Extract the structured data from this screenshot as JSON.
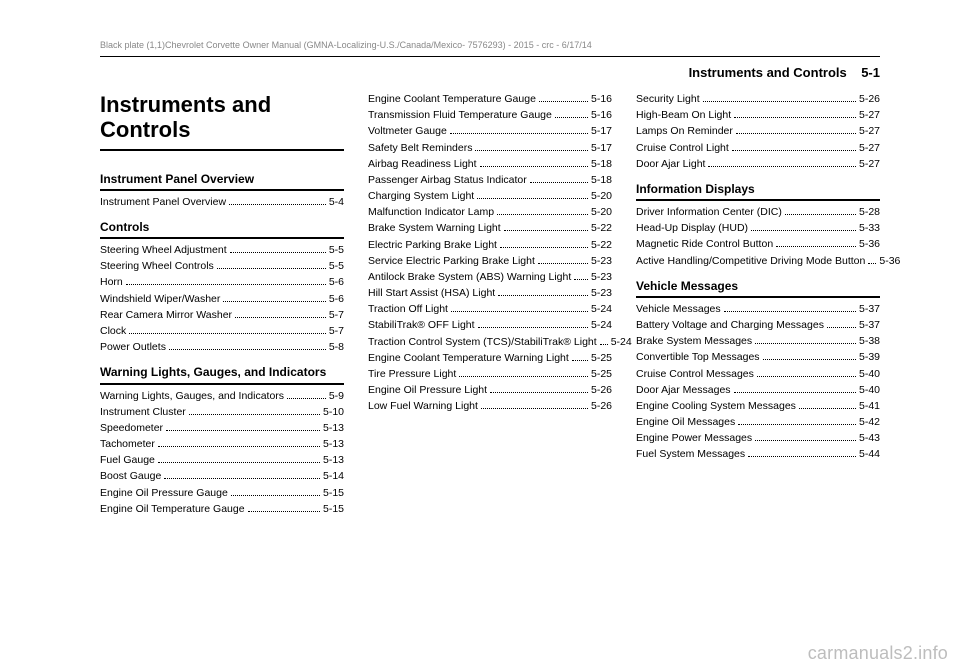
{
  "running_title": "Black plate (1,1)Chevrolet Corvette Owner Manual (GMNA-Localizing-U.S./Canada/Mexico-\n7576293) - 2015 - crc - 6/17/14",
  "page_header_label": "Instruments and Controls",
  "page_header_num": "5-1",
  "chapter_title": "Instruments and Controls",
  "watermark": "carmanuals2.info",
  "col1": {
    "sections": [
      {
        "heading": "Instrument Panel Overview",
        "items": [
          {
            "label": "Instrument Panel Overview",
            "page": "5-4"
          }
        ]
      },
      {
        "heading": "Controls",
        "items": [
          {
            "label": "Steering Wheel Adjustment",
            "page": "5-5"
          },
          {
            "label": "Steering Wheel Controls",
            "page": "5-5"
          },
          {
            "label": "Horn",
            "page": "5-6"
          },
          {
            "label": "Windshield Wiper/Washer",
            "page": "5-6"
          },
          {
            "label": "Rear Camera Mirror Washer",
            "page": "5-7"
          },
          {
            "label": "Clock",
            "page": "5-7"
          },
          {
            "label": "Power Outlets",
            "page": "5-8"
          }
        ]
      },
      {
        "heading": "Warning Lights, Gauges, and Indicators",
        "items": [
          {
            "label": "Warning Lights, Gauges, and Indicators",
            "page": "5-9"
          },
          {
            "label": "Instrument Cluster",
            "page": "5-10"
          },
          {
            "label": "Speedometer",
            "page": "5-13"
          },
          {
            "label": "Tachometer",
            "page": "5-13"
          },
          {
            "label": "Fuel Gauge",
            "page": "5-13"
          },
          {
            "label": "Boost Gauge",
            "page": "5-14"
          },
          {
            "label": "Engine Oil Pressure Gauge",
            "page": "5-15"
          },
          {
            "label": "Engine Oil Temperature Gauge",
            "page": "5-15"
          }
        ]
      }
    ]
  },
  "col2": {
    "items": [
      {
        "label": "Engine Coolant Temperature Gauge",
        "page": "5-16"
      },
      {
        "label": "Transmission Fluid Temperature Gauge",
        "page": "5-16"
      },
      {
        "label": "Voltmeter Gauge",
        "page": "5-17"
      },
      {
        "label": "Safety Belt Reminders",
        "page": "5-17"
      },
      {
        "label": "Airbag Readiness Light",
        "page": "5-18"
      },
      {
        "label": "Passenger Airbag Status Indicator",
        "page": "5-18"
      },
      {
        "label": "Charging System Light",
        "page": "5-20"
      },
      {
        "label": "Malfunction Indicator Lamp",
        "page": "5-20"
      },
      {
        "label": "Brake System Warning Light",
        "page": "5-22"
      },
      {
        "label": "Electric Parking Brake Light",
        "page": "5-22"
      },
      {
        "label": "Service Electric Parking Brake Light",
        "page": "5-23"
      },
      {
        "label": "Antilock Brake System (ABS) Warning Light",
        "page": "5-23"
      },
      {
        "label": "Hill Start Assist (HSA) Light",
        "page": "5-23"
      },
      {
        "label": "Traction Off Light",
        "page": "5-24"
      },
      {
        "label": "StabiliTrak® OFF Light",
        "page": "5-24"
      },
      {
        "label": "Traction Control System (TCS)/StabiliTrak® Light",
        "page": "5-24"
      },
      {
        "label": "Engine Coolant Temperature Warning Light",
        "page": "5-25"
      },
      {
        "label": "Tire Pressure Light",
        "page": "5-25"
      },
      {
        "label": "Engine Oil Pressure Light",
        "page": "5-26"
      },
      {
        "label": "Low Fuel Warning Light",
        "page": "5-26"
      }
    ]
  },
  "col3": {
    "top_items": [
      {
        "label": "Security Light",
        "page": "5-26"
      },
      {
        "label": "High-Beam On Light",
        "page": "5-27"
      },
      {
        "label": "Lamps On Reminder",
        "page": "5-27"
      },
      {
        "label": "Cruise Control Light",
        "page": "5-27"
      },
      {
        "label": "Door Ajar Light",
        "page": "5-27"
      }
    ],
    "sections": [
      {
        "heading": "Information Displays",
        "items": [
          {
            "label": "Driver Information Center (DIC)",
            "page": "5-28"
          },
          {
            "label": "Head-Up Display (HUD)",
            "page": "5-33"
          },
          {
            "label": "Magnetic Ride Control Button",
            "page": "5-36"
          },
          {
            "label": "Active Handling/Competitive Driving Mode Button",
            "page": "5-36"
          }
        ]
      },
      {
        "heading": "Vehicle Messages",
        "items": [
          {
            "label": "Vehicle Messages",
            "page": "5-37"
          },
          {
            "label": "Battery Voltage and Charging Messages",
            "page": "5-37"
          },
          {
            "label": "Brake System Messages",
            "page": "5-38"
          },
          {
            "label": "Convertible Top Messages",
            "page": "5-39"
          },
          {
            "label": "Cruise Control Messages",
            "page": "5-40"
          },
          {
            "label": "Door Ajar Messages",
            "page": "5-40"
          },
          {
            "label": "Engine Cooling System Messages",
            "page": "5-41"
          },
          {
            "label": "Engine Oil Messages",
            "page": "5-42"
          },
          {
            "label": "Engine Power Messages",
            "page": "5-43"
          },
          {
            "label": "Fuel System Messages",
            "page": "5-44"
          }
        ]
      }
    ]
  }
}
